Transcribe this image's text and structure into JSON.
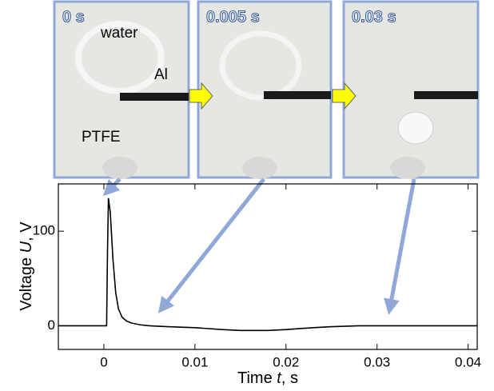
{
  "chart_data": {
    "type": "line",
    "xlabel": [
      "Time ",
      "t",
      ", s"
    ],
    "ylabel": [
      "Voltage ",
      "U",
      ", V"
    ],
    "x": [
      -0.005,
      0,
      0.0003,
      0.0004,
      0.0005,
      0.0007,
      0.001,
      0.0013,
      0.0016,
      0.002,
      0.0025,
      0.003,
      0.004,
      0.005,
      0.007,
      0.01,
      0.013,
      0.015,
      0.018,
      0.02,
      0.023,
      0.025,
      0.028,
      0.03,
      0.035,
      0.04,
      0.041
    ],
    "series": [
      {
        "color": "#000000",
        "values": [
          0,
          0,
          0,
          80,
          135,
          120,
          70,
          35,
          18,
          9,
          5,
          3,
          1,
          0,
          -1,
          -2,
          -4,
          -5,
          -5,
          -4,
          -2,
          -1,
          0,
          0,
          0,
          0,
          0
        ]
      }
    ],
    "xlim": [
      -0.005,
      0.041
    ],
    "xticks": [
      0,
      0.01,
      0.02,
      0.03,
      0.04
    ],
    "ylim": [
      -25,
      150
    ],
    "yticks": [
      0,
      100
    ],
    "panels": [
      {
        "time": "0 s",
        "labels": [
          "water",
          "Al",
          "PTFE"
        ]
      },
      {
        "time": "0.005 s"
      },
      {
        "time": "0.03 s"
      }
    ]
  }
}
